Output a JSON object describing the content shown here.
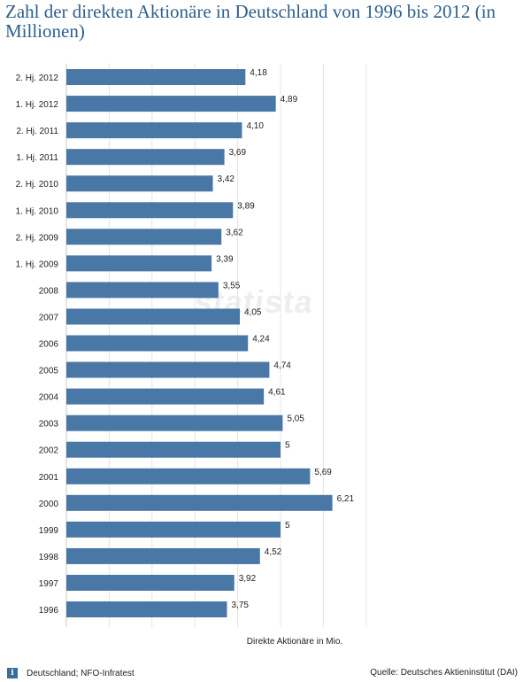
{
  "title": "Zahl der direkten Aktionäre in Deutschland von 1996 bis 2012 (in Millionen)",
  "footer": {
    "info_icon": "info-icon",
    "left_text": "Deutschland; NFO-Infratest",
    "source_text": "Quelle: Deutsches Aktieninstitut (DAI)"
  },
  "watermark": "statista",
  "colors": {
    "bar": "#4a78a6",
    "title": "#2d5f8e"
  },
  "chart_data": {
    "type": "bar",
    "orientation": "horizontal",
    "title": "Zahl der direkten Aktionäre in Deutschland von 1996 bis 2012 (in Millionen)",
    "xlabel": "Direkte Aktionäre in Mio.",
    "ylabel": "",
    "xlim": [
      0,
      7
    ],
    "grid": true,
    "categories": [
      "2. Hj. 2012",
      "1. Hj. 2012",
      "2. Hj. 2011",
      "1. Hj. 2011",
      "2. Hj. 2010",
      "1. Hj. 2010",
      "2. Hj. 2009",
      "1. Hj. 2009",
      "2008",
      "2007",
      "2006",
      "2005",
      "2004",
      "2003",
      "2002",
      "2001",
      "2000",
      "1999",
      "1998",
      "1997",
      "1996"
    ],
    "values": [
      4.18,
      4.89,
      4.1,
      3.69,
      3.42,
      3.89,
      3.62,
      3.39,
      3.55,
      4.05,
      4.24,
      4.74,
      4.61,
      5.05,
      5,
      5.69,
      6.21,
      5,
      4.52,
      3.92,
      3.75
    ],
    "value_labels": [
      "4,18",
      "4,89",
      "4,10",
      "3,69",
      "3,42",
      "3,89",
      "3,62",
      "3,39",
      "3,55",
      "4,05",
      "4,24",
      "4,74",
      "4,61",
      "5,05",
      "5",
      "5,69",
      "6,21",
      "5",
      "4,52",
      "3,92",
      "3,75"
    ]
  }
}
